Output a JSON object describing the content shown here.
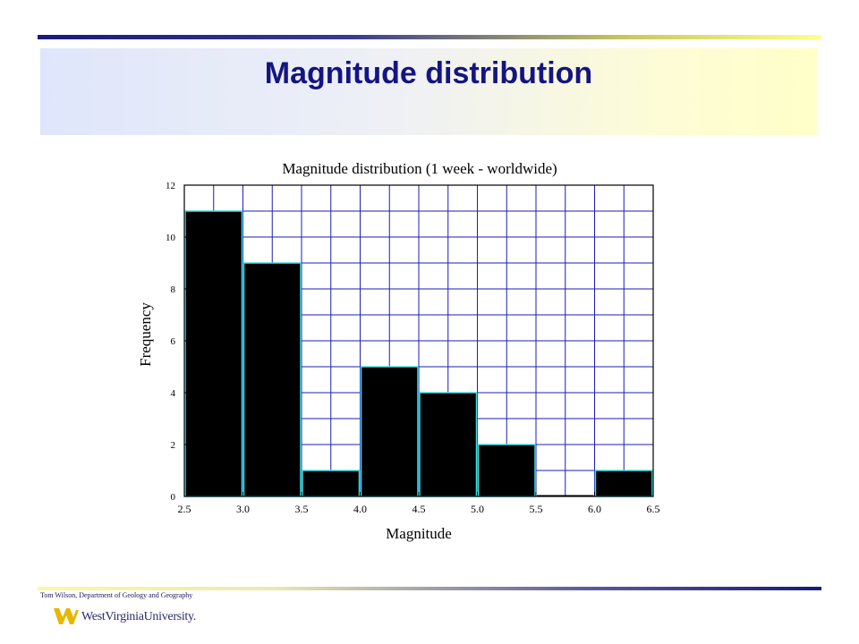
{
  "slide": {
    "title": "Magnitude distribution",
    "footer": "Tom Wilson, Department of Geology and Geography",
    "logo_text": "WestVirginiaUniversity."
  },
  "colors": {
    "title": "#141482",
    "grid": "#1e1eb4",
    "bar_fill": "#000000",
    "bar_edge": "#40e0e0",
    "axis": "#000000"
  },
  "chart_data": {
    "type": "bar",
    "title": "Magnitude distribution (1 week - worldwide)",
    "xlabel": "Magnitude",
    "ylabel": "Frequency",
    "xlim": [
      2.5,
      6.5
    ],
    "ylim": [
      0,
      12
    ],
    "x_ticks": [
      "2.5",
      "3.0",
      "3.5",
      "4.0",
      "4.5",
      "5.0",
      "5.5",
      "6.0",
      "6.5"
    ],
    "y_ticks": [
      "0",
      "2",
      "4",
      "6",
      "8",
      "10",
      "12"
    ],
    "bins": [
      {
        "from": 2.5,
        "to": 3.0,
        "value": 11
      },
      {
        "from": 3.0,
        "to": 3.5,
        "value": 9
      },
      {
        "from": 3.5,
        "to": 4.0,
        "value": 1
      },
      {
        "from": 4.0,
        "to": 4.5,
        "value": 5
      },
      {
        "from": 4.5,
        "to": 5.0,
        "value": 4
      },
      {
        "from": 5.0,
        "to": 5.5,
        "value": 2
      },
      {
        "from": 5.5,
        "to": 6.0,
        "value": 0
      },
      {
        "from": 6.0,
        "to": 6.5,
        "value": 1
      }
    ],
    "grid": true
  }
}
